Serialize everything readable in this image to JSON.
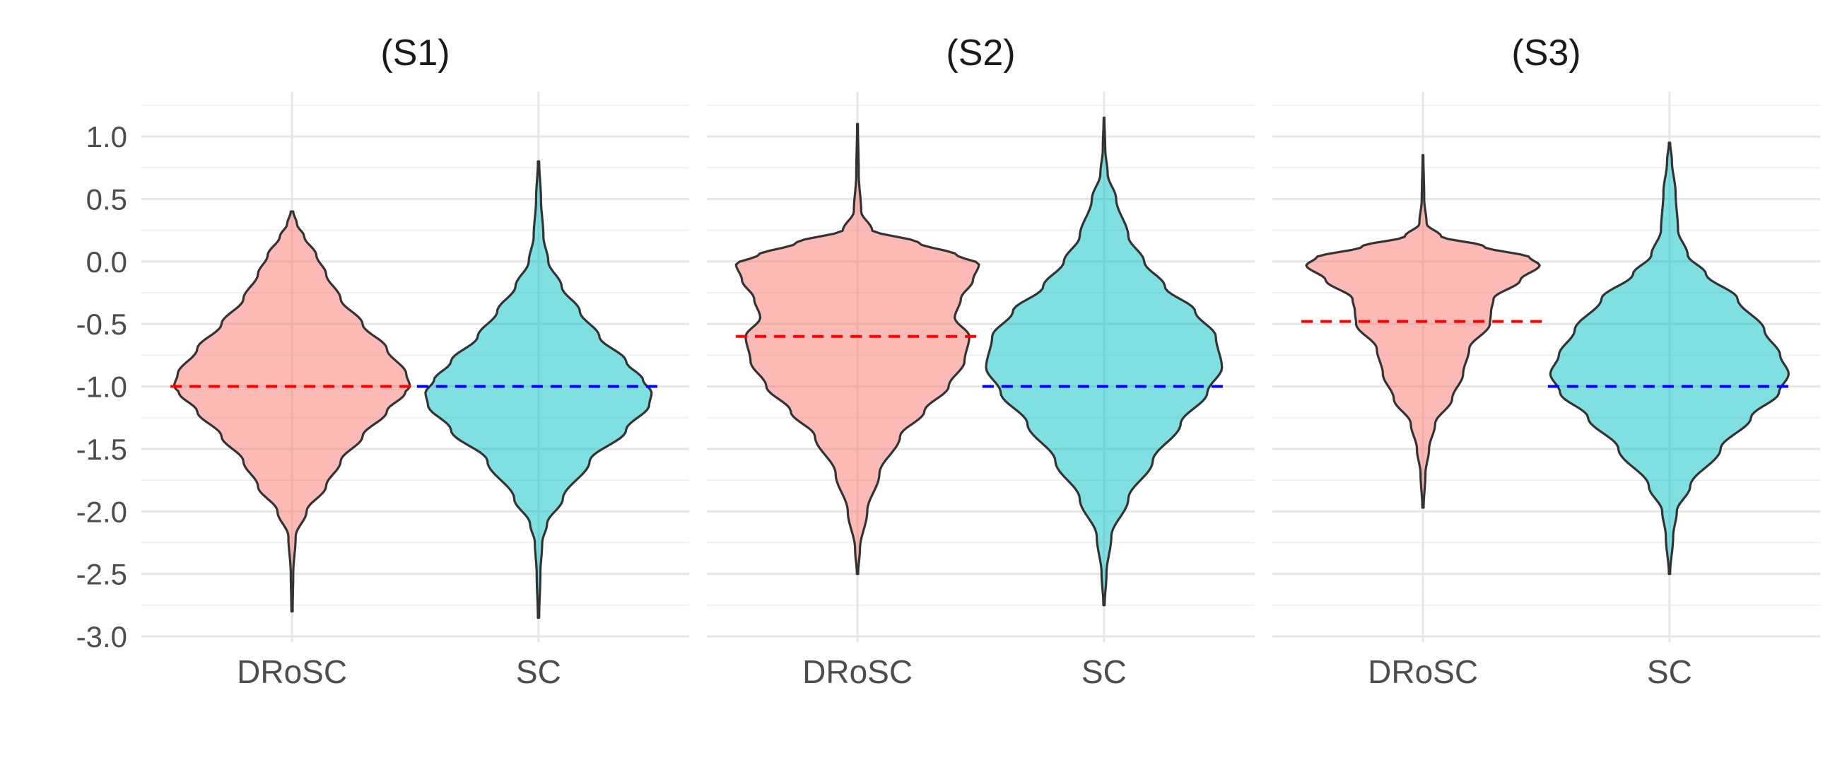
{
  "chart_data": {
    "type": "violin",
    "title": "",
    "xlabel": "",
    "ylabel": "",
    "ylim": [
      -3.0,
      1.0
    ],
    "yticks": [
      "1.0",
      "0.5",
      "0.0",
      "-0.5",
      "-1.0",
      "-1.5",
      "-2.0",
      "-2.5",
      "-3.0"
    ],
    "ytick_values": [
      1.0,
      0.5,
      0.0,
      -0.5,
      -1.0,
      -1.5,
      -2.0,
      -2.5,
      -3.0
    ],
    "categories": [
      "DRoSC",
      "SC"
    ],
    "colors": {
      "DRoSC": "#F8766D",
      "SC": "#00BFC4",
      "DRoSC_line": "#ff0000",
      "SC_line": "#0000ff",
      "outline": "#333333"
    },
    "grid": true,
    "legend": "none",
    "panels": [
      {
        "title": "(S1)",
        "violins": [
          {
            "name": "DRoSC",
            "ymin": -2.8,
            "ymax": 0.4,
            "reference": -1.0,
            "profile": [
              [
                -2.8,
                0.005
              ],
              [
                -2.5,
                0.01
              ],
              [
                -2.2,
                0.03
              ],
              [
                -2.0,
                0.12
              ],
              [
                -1.8,
                0.28
              ],
              [
                -1.6,
                0.4
              ],
              [
                -1.4,
                0.58
              ],
              [
                -1.2,
                0.78
              ],
              [
                -1.05,
                0.93
              ],
              [
                -1.0,
                0.97
              ],
              [
                -0.9,
                0.94
              ],
              [
                -0.7,
                0.78
              ],
              [
                -0.5,
                0.58
              ],
              [
                -0.3,
                0.4
              ],
              [
                -0.1,
                0.28
              ],
              [
                0.05,
                0.2
              ],
              [
                0.2,
                0.1
              ],
              [
                0.3,
                0.04
              ],
              [
                0.4,
                0.01
              ]
            ]
          },
          {
            "name": "SC",
            "ymin": -2.85,
            "ymax": 0.8,
            "reference": -1.0,
            "profile": [
              [
                -2.85,
                0.005
              ],
              [
                -2.5,
                0.015
              ],
              [
                -2.25,
                0.03
              ],
              [
                -2.1,
                0.07
              ],
              [
                -1.9,
                0.2
              ],
              [
                -1.6,
                0.42
              ],
              [
                -1.35,
                0.72
              ],
              [
                -1.15,
                0.91
              ],
              [
                -1.05,
                0.93
              ],
              [
                -0.95,
                0.86
              ],
              [
                -0.8,
                0.72
              ],
              [
                -0.6,
                0.5
              ],
              [
                -0.4,
                0.34
              ],
              [
                -0.2,
                0.19
              ],
              [
                0.0,
                0.08
              ],
              [
                0.2,
                0.04
              ],
              [
                0.5,
                0.02
              ],
              [
                0.8,
                0.005
              ]
            ]
          }
        ]
      },
      {
        "title": "(S2)",
        "violins": [
          {
            "name": "DRoSC",
            "ymin": -2.5,
            "ymax": 1.1,
            "reference": -0.6,
            "profile": [
              [
                -2.5,
                0.005
              ],
              [
                -2.3,
                0.02
              ],
              [
                -2.0,
                0.08
              ],
              [
                -1.7,
                0.18
              ],
              [
                -1.4,
                0.35
              ],
              [
                -1.2,
                0.55
              ],
              [
                -1.0,
                0.75
              ],
              [
                -0.8,
                0.88
              ],
              [
                -0.6,
                0.92
              ],
              [
                -0.45,
                0.8
              ],
              [
                -0.3,
                0.85
              ],
              [
                -0.15,
                0.95
              ],
              [
                -0.02,
                1.0
              ],
              [
                0.05,
                0.82
              ],
              [
                0.15,
                0.5
              ],
              [
                0.25,
                0.12
              ],
              [
                0.4,
                0.03
              ],
              [
                0.7,
                0.01
              ],
              [
                1.1,
                0.003
              ]
            ]
          },
          {
            "name": "SC",
            "ymin": -2.75,
            "ymax": 1.15,
            "reference": -1.0,
            "profile": [
              [
                -2.75,
                0.005
              ],
              [
                -2.5,
                0.02
              ],
              [
                -2.2,
                0.06
              ],
              [
                -1.9,
                0.2
              ],
              [
                -1.6,
                0.4
              ],
              [
                -1.3,
                0.63
              ],
              [
                -1.05,
                0.85
              ],
              [
                -0.85,
                0.97
              ],
              [
                -0.6,
                0.92
              ],
              [
                -0.4,
                0.75
              ],
              [
                -0.2,
                0.5
              ],
              [
                0.0,
                0.33
              ],
              [
                0.2,
                0.2
              ],
              [
                0.5,
                0.1
              ],
              [
                0.7,
                0.03
              ],
              [
                0.9,
                0.01
              ],
              [
                1.15,
                0.003
              ]
            ]
          }
        ]
      },
      {
        "title": "(S3)",
        "violins": [
          {
            "name": "DRoSC",
            "ymin": -1.97,
            "ymax": 0.85,
            "reference": -0.48,
            "profile": [
              [
                -1.97,
                0.005
              ],
              [
                -1.7,
                0.02
              ],
              [
                -1.5,
                0.05
              ],
              [
                -1.3,
                0.1
              ],
              [
                -1.1,
                0.24
              ],
              [
                -0.9,
                0.33
              ],
              [
                -0.7,
                0.38
              ],
              [
                -0.5,
                0.55
              ],
              [
                -0.4,
                0.56
              ],
              [
                -0.3,
                0.58
              ],
              [
                -0.15,
                0.8
              ],
              [
                -0.03,
                0.96
              ],
              [
                0.03,
                0.88
              ],
              [
                0.12,
                0.5
              ],
              [
                0.2,
                0.15
              ],
              [
                0.3,
                0.03
              ],
              [
                0.5,
                0.01
              ],
              [
                0.85,
                0.003
              ]
            ]
          },
          {
            "name": "SC",
            "ymin": -2.5,
            "ymax": 0.95,
            "reference": -1.0,
            "profile": [
              [
                -2.5,
                0.005
              ],
              [
                -2.2,
                0.03
              ],
              [
                -2.0,
                0.06
              ],
              [
                -1.8,
                0.17
              ],
              [
                -1.5,
                0.42
              ],
              [
                -1.25,
                0.67
              ],
              [
                -1.05,
                0.9
              ],
              [
                -0.9,
                0.98
              ],
              [
                -0.75,
                0.91
              ],
              [
                -0.55,
                0.78
              ],
              [
                -0.3,
                0.56
              ],
              [
                -0.1,
                0.3
              ],
              [
                0.05,
                0.15
              ],
              [
                0.25,
                0.07
              ],
              [
                0.55,
                0.05
              ],
              [
                0.8,
                0.02
              ],
              [
                0.95,
                0.005
              ]
            ]
          }
        ]
      }
    ]
  }
}
